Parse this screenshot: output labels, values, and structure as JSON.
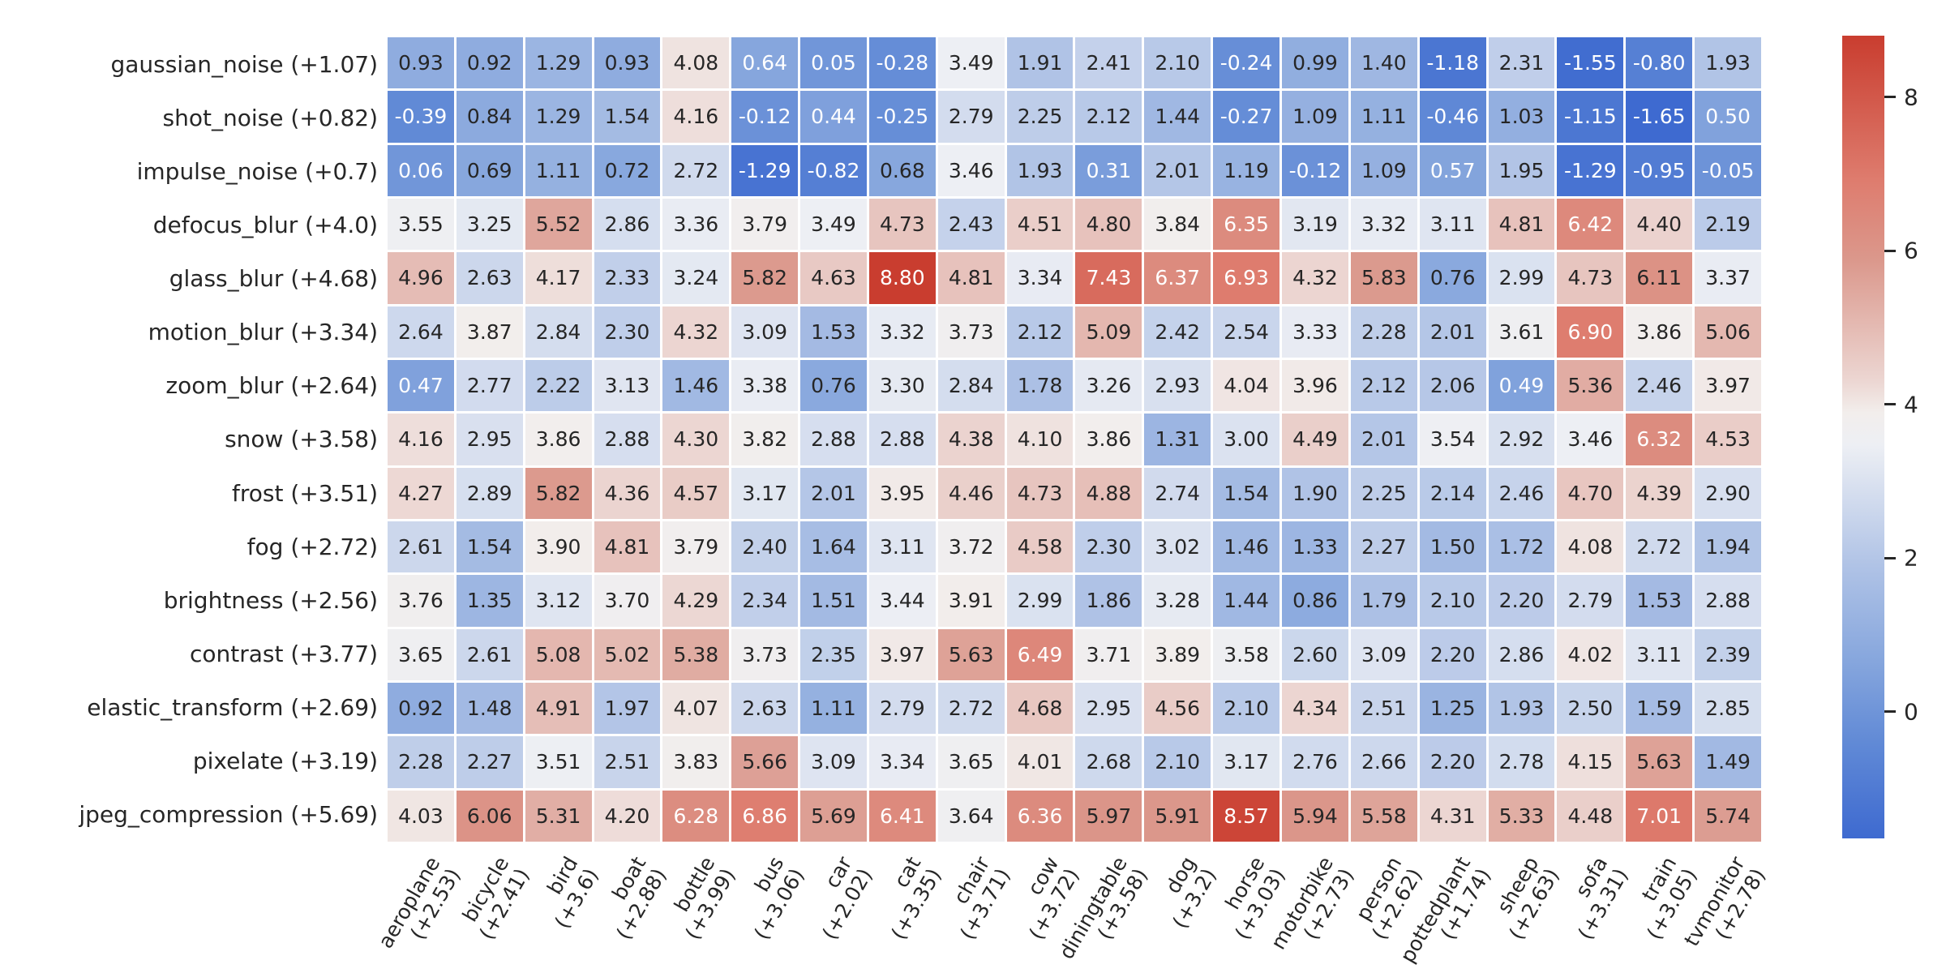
{
  "chart_data": {
    "type": "heatmap",
    "title": "",
    "row_labels": [
      "gaussian_noise (+1.07)",
      "shot_noise (+0.82)",
      "impulse_noise (+0.7)",
      "defocus_blur (+4.0)",
      "glass_blur (+4.68)",
      "motion_blur (+3.34)",
      "zoom_blur (+2.64)",
      "snow (+3.58)",
      "frost (+3.51)",
      "fog (+2.72)",
      "brightness (+2.56)",
      "contrast (+3.77)",
      "elastic_transform (+2.69)",
      "pixelate (+3.19)",
      "jpeg_compression (+5.69)"
    ],
    "col_labels": [
      {
        "name": "aeroplane",
        "delta": "(+2.53)"
      },
      {
        "name": "bicycle",
        "delta": "(+2.41)"
      },
      {
        "name": "bird",
        "delta": "(+3.6)"
      },
      {
        "name": "boat",
        "delta": "(+2.88)"
      },
      {
        "name": "bottle",
        "delta": "(+3.99)"
      },
      {
        "name": "bus",
        "delta": "(+3.06)"
      },
      {
        "name": "car",
        "delta": "(+2.02)"
      },
      {
        "name": "cat",
        "delta": "(+3.35)"
      },
      {
        "name": "chair",
        "delta": "(+3.71)"
      },
      {
        "name": "cow",
        "delta": "(+3.72)"
      },
      {
        "name": "diningtable",
        "delta": "(+3.58)"
      },
      {
        "name": "dog",
        "delta": "(+3.2)"
      },
      {
        "name": "horse",
        "delta": "(+3.03)"
      },
      {
        "name": "motorbike",
        "delta": "(+2.73)"
      },
      {
        "name": "person",
        "delta": "(+2.62)"
      },
      {
        "name": "pottedplant",
        "delta": "(+1.74)"
      },
      {
        "name": "sheep",
        "delta": "(+2.63)"
      },
      {
        "name": "sofa",
        "delta": "(+3.31)"
      },
      {
        "name": "train",
        "delta": "(+3.05)"
      },
      {
        "name": "tvmonitor",
        "delta": "(+2.78)"
      }
    ],
    "values": [
      [
        0.93,
        0.92,
        1.29,
        0.93,
        4.08,
        0.64,
        0.05,
        -0.28,
        3.49,
        1.91,
        2.41,
        2.1,
        -0.24,
        0.99,
        1.4,
        -1.18,
        2.31,
        -1.55,
        -0.8,
        1.93
      ],
      [
        -0.39,
        0.84,
        1.29,
        1.54,
        4.16,
        -0.12,
        0.44,
        -0.25,
        2.79,
        2.25,
        2.12,
        1.44,
        -0.27,
        1.09,
        1.11,
        -0.46,
        1.03,
        -1.15,
        -1.65,
        0.5
      ],
      [
        0.06,
        0.69,
        1.11,
        0.72,
        2.72,
        -1.29,
        -0.82,
        0.68,
        3.46,
        1.93,
        0.31,
        2.01,
        1.19,
        -0.12,
        1.09,
        0.57,
        1.95,
        -1.29,
        -0.95,
        -0.05
      ],
      [
        3.55,
        3.25,
        5.52,
        2.86,
        3.36,
        3.79,
        3.49,
        4.73,
        2.43,
        4.51,
        4.8,
        3.84,
        6.35,
        3.19,
        3.32,
        3.11,
        4.81,
        6.42,
        4.4,
        2.19
      ],
      [
        4.96,
        2.63,
        4.17,
        2.33,
        3.24,
        5.82,
        4.63,
        8.8,
        4.81,
        3.34,
        7.43,
        6.37,
        6.93,
        4.32,
        5.83,
        0.76,
        2.99,
        4.73,
        6.11,
        3.37
      ],
      [
        2.64,
        3.87,
        2.84,
        2.3,
        4.32,
        3.09,
        1.53,
        3.32,
        3.73,
        2.12,
        5.09,
        2.42,
        2.54,
        3.33,
        2.28,
        2.01,
        3.61,
        6.9,
        3.86,
        5.06
      ],
      [
        0.47,
        2.77,
        2.22,
        3.13,
        1.46,
        3.38,
        0.76,
        3.3,
        2.84,
        1.78,
        3.26,
        2.93,
        4.04,
        3.96,
        2.12,
        2.06,
        0.49,
        5.36,
        2.46,
        3.97
      ],
      [
        4.16,
        2.95,
        3.86,
        2.88,
        4.3,
        3.82,
        2.88,
        2.88,
        4.38,
        4.1,
        3.86,
        1.31,
        3.0,
        4.49,
        2.01,
        3.54,
        2.92,
        3.46,
        6.32,
        4.53
      ],
      [
        4.27,
        2.89,
        5.82,
        4.36,
        4.57,
        3.17,
        2.01,
        3.95,
        4.46,
        4.73,
        4.88,
        2.74,
        1.54,
        1.9,
        2.25,
        2.14,
        2.46,
        4.7,
        4.39,
        2.9
      ],
      [
        2.61,
        1.54,
        3.9,
        4.81,
        3.79,
        2.4,
        1.64,
        3.11,
        3.72,
        4.58,
        2.3,
        3.02,
        1.46,
        1.33,
        2.27,
        1.5,
        1.72,
        4.08,
        2.72,
        1.94
      ],
      [
        3.76,
        1.35,
        3.12,
        3.7,
        4.29,
        2.34,
        1.51,
        3.44,
        3.91,
        2.99,
        1.86,
        3.28,
        1.44,
        0.86,
        1.79,
        2.1,
        2.2,
        2.79,
        1.53,
        2.88
      ],
      [
        3.65,
        2.61,
        5.08,
        5.02,
        5.38,
        3.73,
        2.35,
        3.97,
        5.63,
        6.49,
        3.71,
        3.89,
        3.58,
        2.6,
        3.09,
        2.2,
        2.86,
        4.02,
        3.11,
        2.39
      ],
      [
        0.92,
        1.48,
        4.91,
        1.97,
        4.07,
        2.63,
        1.11,
        2.79,
        2.72,
        4.68,
        2.95,
        4.56,
        2.1,
        4.34,
        2.51,
        1.25,
        1.93,
        2.5,
        1.59,
        2.85
      ],
      [
        2.28,
        2.27,
        3.51,
        2.51,
        3.83,
        5.66,
        3.09,
        3.34,
        3.65,
        4.01,
        2.68,
        2.1,
        3.17,
        2.76,
        2.66,
        2.2,
        2.78,
        4.15,
        5.63,
        1.49
      ],
      [
        4.03,
        6.06,
        5.31,
        4.2,
        6.28,
        6.86,
        5.69,
        6.41,
        3.64,
        6.36,
        5.97,
        5.91,
        8.57,
        5.94,
        5.58,
        4.31,
        5.33,
        4.48,
        7.01,
        5.74
      ]
    ],
    "value_decimals": 2,
    "colorbar": {
      "vmin": -1.65,
      "vmax": 8.8,
      "ticks": [
        8,
        6,
        4,
        2,
        0
      ],
      "position": "right"
    },
    "colormap": {
      "style": "diverging blue-white-red (coolwarm-like)",
      "anchors": [
        {
          "t": 0.0,
          "color": [
            62,
            106,
            208
          ]
        },
        {
          "t": 0.12,
          "color": [
            97,
            138,
            214
          ]
        },
        {
          "t": 0.22,
          "color": [
            134,
            166,
            221
          ]
        },
        {
          "t": 0.34,
          "color": [
            176,
            195,
            230
          ]
        },
        {
          "t": 0.49,
          "color": [
            237,
            239,
            244
          ]
        },
        {
          "t": 0.53,
          "color": [
            242,
            238,
            236
          ]
        },
        {
          "t": 0.57,
          "color": [
            236,
            214,
            210
          ]
        },
        {
          "t": 0.72,
          "color": [
            219,
            152,
            140
          ]
        },
        {
          "t": 0.82,
          "color": [
            222,
            124,
            110
          ]
        },
        {
          "t": 1.0,
          "color": [
            201,
            61,
            47
          ]
        }
      ]
    },
    "annotation_text_colors": {
      "dark": "#262626",
      "light": "#ffffff",
      "light_when_value_below": 0.66,
      "light_when_value_above": 6.2
    },
    "grid": {
      "gap_color": "#ffffff"
    },
    "layout_hints": {
      "legend_position": "right-colorbar",
      "x_tick_rotation_deg": 60
    }
  }
}
